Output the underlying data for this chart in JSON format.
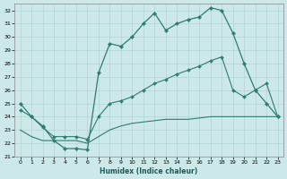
{
  "xlabel": "Humidex (Indice chaleur)",
  "bg_color": "#cce8e8",
  "grid_color": "#b0d4d4",
  "line_color": "#2e7d6e",
  "xlim": [
    -0.5,
    23.5
  ],
  "ylim": [
    21,
    32.5
  ],
  "yticks": [
    21,
    22,
    23,
    24,
    25,
    26,
    27,
    28,
    29,
    30,
    31,
    32
  ],
  "xticks": [
    0,
    1,
    2,
    3,
    4,
    5,
    6,
    7,
    8,
    9,
    10,
    11,
    12,
    13,
    14,
    15,
    16,
    17,
    18,
    19,
    20,
    21,
    22,
    23
  ],
  "curve1_x": [
    0,
    1,
    2,
    3,
    4,
    5,
    6,
    7,
    8,
    9,
    10,
    11,
    12,
    13,
    14,
    15,
    16,
    17,
    18,
    19,
    20,
    21,
    22,
    23
  ],
  "curve1_y": [
    25.0,
    24.0,
    23.3,
    22.2,
    21.6,
    21.6,
    21.5,
    27.3,
    29.5,
    29.3,
    30.0,
    31.0,
    31.8,
    30.5,
    31.0,
    31.3,
    31.5,
    32.2,
    32.0,
    30.3,
    28.0,
    26.0,
    25.0,
    24.0
  ],
  "curve2_x": [
    0,
    1,
    2,
    3,
    4,
    5,
    6,
    7,
    8,
    9,
    10,
    11,
    12,
    13,
    14,
    15,
    16,
    17,
    18,
    19,
    20,
    21,
    22,
    23
  ],
  "curve2_y": [
    24.5,
    24.0,
    23.2,
    22.5,
    22.5,
    22.5,
    22.3,
    24.0,
    25.0,
    25.2,
    25.5,
    26.0,
    26.5,
    26.8,
    27.2,
    27.5,
    27.8,
    28.2,
    28.5,
    26.0,
    25.5,
    26.0,
    26.5,
    24.0
  ],
  "curve3_x": [
    0,
    1,
    2,
    3,
    4,
    5,
    6,
    7,
    8,
    9,
    10,
    11,
    12,
    13,
    14,
    15,
    16,
    17,
    18,
    19,
    20,
    21,
    22,
    23
  ],
  "curve3_y": [
    23.0,
    22.5,
    22.2,
    22.2,
    22.2,
    22.2,
    22.0,
    22.5,
    23.0,
    23.3,
    23.5,
    23.6,
    23.7,
    23.8,
    23.8,
    23.8,
    23.9,
    24.0,
    24.0,
    24.0,
    24.0,
    24.0,
    24.0,
    24.0
  ]
}
